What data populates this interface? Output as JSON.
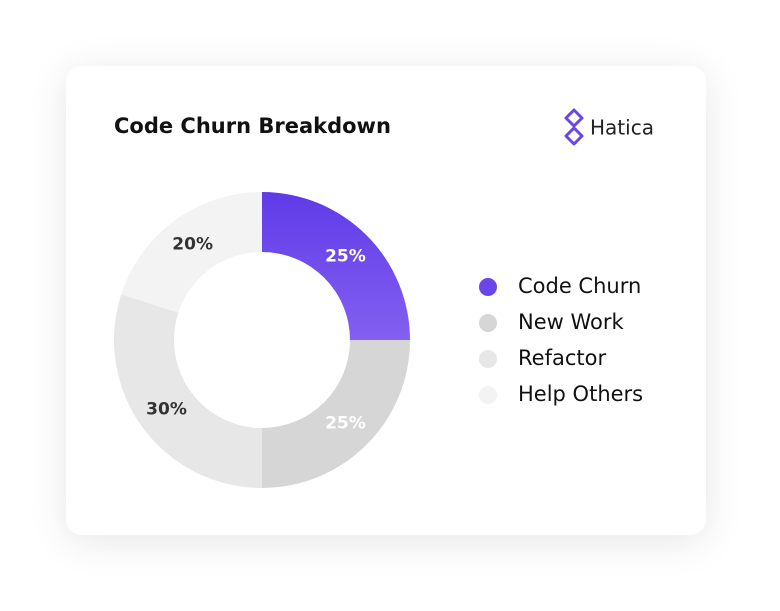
{
  "brand": "Hatica",
  "chart_data": {
    "type": "donut",
    "title": "Code Churn Breakdown",
    "categories": [
      "Code Churn",
      "New Work",
      "Refactor",
      "Help Others"
    ],
    "values": [
      25,
      25,
      30,
      20
    ],
    "value_labels": [
      "25%",
      "25%",
      "30%",
      "20%"
    ],
    "colors": [
      "#6b45ea",
      "#d6d6d6",
      "#e7e7e7",
      "#f3f3f3"
    ]
  }
}
